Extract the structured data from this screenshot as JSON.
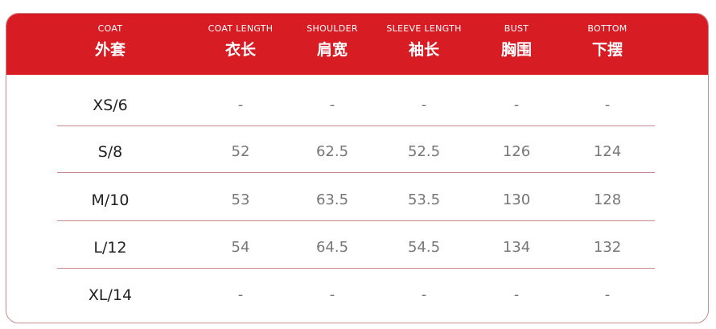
{
  "colors": {
    "header": "#d71c24",
    "divider": "#c98a8e"
  },
  "columns": [
    {
      "en": "COAT",
      "zh": "外套"
    },
    {
      "en": "COAT LENGTH",
      "zh": "衣长"
    },
    {
      "en": "SHOULDER",
      "zh": "肩宽"
    },
    {
      "en": "SLEEVE LENGTH",
      "zh": "袖长"
    },
    {
      "en": "BUST",
      "zh": "胸围"
    },
    {
      "en": "BOTTOM",
      "zh": "下摆"
    }
  ],
  "rows": [
    [
      "XS/6",
      "-",
      "-",
      "-",
      "-",
      "-"
    ],
    [
      "S/8",
      "52",
      "62.5",
      "52.5",
      "126",
      "124"
    ],
    [
      "M/10",
      "53",
      "63.5",
      "53.5",
      "130",
      "128"
    ],
    [
      "L/12",
      "54",
      "64.5",
      "54.5",
      "134",
      "132"
    ],
    [
      "XL/14",
      "-",
      "-",
      "-",
      "-",
      "-"
    ]
  ]
}
